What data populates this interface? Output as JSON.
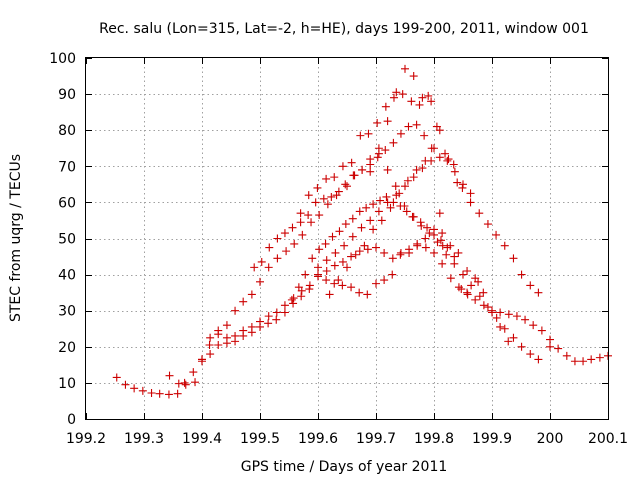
{
  "chart_data": {
    "type": "scatter",
    "title": "Rec. salu (Lon=315, Lat=-2, h=HE), days 199-200, 2011, window 001",
    "xlabel": "GPS time / Days of year 2011",
    "ylabel": "STEC from uqrg / TECUs",
    "xlim": [
      199.2,
      200.1
    ],
    "ylim": [
      0,
      100
    ],
    "xticks": [
      199.2,
      199.3,
      199.4,
      199.5,
      199.6,
      199.7,
      199.8,
      199.9,
      200.0,
      200.1
    ],
    "xtick_labels": [
      "199.2",
      "199.3",
      "199.4",
      "199.5",
      "199.6",
      "199.7",
      "199.8",
      "199.9",
      "200",
      "200.1"
    ],
    "yticks": [
      0,
      10,
      20,
      30,
      40,
      50,
      60,
      70,
      80,
      90,
      100
    ],
    "ytick_labels": [
      "0",
      "10",
      "20",
      "30",
      "40",
      "50",
      "60",
      "70",
      "80",
      "90",
      "100"
    ],
    "grid": true,
    "marker": "+",
    "color": "#cc0000",
    "series": [
      {
        "name": "STEC",
        "x": [
          199.253,
          199.268,
          199.283,
          199.298,
          199.313,
          199.327,
          199.343,
          199.358,
          199.372,
          199.388,
          199.344,
          199.36,
          199.37,
          199.385,
          199.4,
          199.413,
          199.428,
          199.443,
          199.457,
          199.471,
          199.486,
          199.5,
          199.515,
          199.53,
          199.545,
          199.559,
          199.573,
          199.588,
          199.602,
          199.617,
          199.632,
          199.647,
          199.661,
          199.676,
          199.69,
          199.705,
          199.72,
          199.734,
          199.749,
          199.763,
          199.778,
          199.792,
          199.806,
          199.821,
          199.835,
          199.85,
          199.864,
          199.879,
          199.893,
          199.908,
          199.922,
          199.937,
          199.951,
          199.966,
          199.98,
          199.4,
          199.414,
          199.428,
          199.443,
          199.457,
          199.471,
          199.486,
          199.5,
          199.515,
          199.529,
          199.543,
          199.558,
          199.572,
          199.586,
          199.6,
          199.615,
          199.629,
          199.643,
          199.657,
          199.672,
          199.686,
          199.7,
          199.714,
          199.729,
          199.743,
          199.757,
          199.771,
          199.786,
          199.8,
          199.814,
          199.829,
          199.843,
          199.857,
          199.871,
          199.886,
          199.9,
          199.914,
          199.929,
          199.943,
          199.957,
          199.971,
          199.986,
          200.0,
          200.014,
          200.029,
          200.043,
          200.057,
          200.071,
          200.086,
          200.1,
          199.4,
          199.414,
          199.428,
          199.443,
          199.457,
          199.471,
          199.486,
          199.5,
          199.514,
          199.528,
          199.543,
          199.557,
          199.571,
          199.585,
          199.6,
          199.614,
          199.628,
          199.642,
          199.657,
          199.671,
          199.685,
          199.7,
          199.714,
          199.728,
          199.742,
          199.757,
          199.771,
          199.785,
          199.8,
          199.814,
          199.828,
          199.842,
          199.857,
          199.871,
          199.885,
          199.9,
          199.914,
          199.928,
          199.49,
          199.503,
          199.516,
          199.53,
          199.543,
          199.556,
          199.57,
          199.583,
          199.596,
          199.61,
          199.623,
          199.636,
          199.65,
          199.663,
          199.676,
          199.69,
          199.703,
          199.716,
          199.73,
          199.743,
          199.756,
          199.77,
          199.783,
          199.796,
          199.81,
          199.823,
          199.836,
          199.85,
          199.863,
          199.876,
          199.555,
          199.567,
          199.578,
          199.59,
          199.602,
          199.613,
          199.625,
          199.637,
          199.648,
          199.66,
          199.672,
          199.683,
          199.695,
          199.707,
          199.718,
          199.73,
          199.742,
          199.753,
          199.765,
          199.777,
          199.788,
          199.8,
          199.812,
          199.823,
          199.835,
          199.847,
          199.858,
          199.57,
          199.584,
          199.599,
          199.614,
          199.628,
          199.643,
          199.658,
          199.673,
          199.687,
          199.702,
          199.717,
          199.731,
          199.746,
          199.761,
          199.775,
          199.79,
          199.805,
          199.819,
          199.834,
          199.849,
          199.863,
          199.878,
          199.893,
          199.907,
          199.922,
          199.937,
          199.951,
          199.966,
          199.98,
          200.0,
          199.6,
          199.615,
          199.63,
          199.645,
          199.66,
          199.675,
          199.69,
          199.705,
          199.72,
          199.735,
          199.75,
          199.765,
          199.78,
          199.795,
          199.81,
          199.62,
          199.635,
          199.65,
          199.665,
          199.68,
          199.695,
          199.71,
          199.725,
          199.74,
          199.755,
          199.77,
          199.785,
          199.8,
          199.815,
          199.69,
          199.705,
          199.72,
          199.735,
          199.75,
          199.765,
          199.78,
          199.795,
          199.81,
          199.825,
          199.84
        ],
        "y": [
          11.5,
          9.5,
          8.5,
          7.8,
          7.2,
          7.0,
          6.8,
          7.0,
          9.5,
          10.2,
          12.0,
          9.8,
          10.0,
          13.0,
          16.5,
          20.5,
          23.5,
          26.0,
          30.0,
          32.5,
          34.5,
          38.0,
          42.0,
          44.5,
          46.5,
          48.5,
          51.0,
          54.5,
          56.5,
          59.5,
          62.0,
          65.0,
          67.5,
          69.0,
          72.0,
          73.5,
          69.0,
          64.5,
          59.0,
          56.0,
          53.5,
          51.5,
          49.0,
          45.5,
          43.0,
          40.0,
          37.0,
          34.0,
          31.0,
          28.0,
          25.0,
          22.5,
          20.0,
          18.0,
          16.5,
          16.0,
          18.0,
          20.5,
          22.5,
          23.0,
          24.5,
          25.5,
          27.0,
          28.5,
          29.5,
          31.5,
          33.5,
          35.5,
          37.0,
          39.5,
          41.0,
          42.5,
          43.5,
          45.0,
          46.5,
          47.0,
          47.5,
          46.0,
          44.5,
          46.0,
          47.0,
          48.0,
          47.5,
          46.0,
          43.0,
          39.0,
          36.5,
          35.0,
          33.0,
          31.5,
          30.0,
          29.5,
          29.0,
          28.5,
          27.5,
          26.0,
          24.5,
          22.0,
          19.5,
          17.5,
          16.0,
          16.0,
          16.5,
          17.0,
          17.5,
          16.5,
          22.5,
          24.5,
          21.0,
          21.5,
          23.0,
          24.0,
          25.5,
          26.5,
          27.5,
          29.5,
          32.0,
          34.0,
          36.0,
          40.0,
          38.5,
          37.5,
          37.0,
          36.5,
          35.0,
          34.5,
          37.5,
          38.5,
          40.0,
          45.5,
          46.0,
          48.5,
          50.0,
          52.5,
          51.5,
          48.0,
          46.0,
          41.0,
          39.0,
          35.0,
          29.5,
          25.5,
          21.5,
          42.0,
          43.5,
          47.5,
          50.0,
          51.5,
          53.0,
          54.5,
          56.5,
          60.0,
          61.0,
          61.5,
          63.0,
          64.5,
          67.5,
          69.0,
          70.5,
          72.5,
          74.5,
          76.5,
          79.0,
          81.0,
          81.5,
          78.5,
          75.0,
          72.5,
          71.5,
          68.5,
          65.0,
          62.5,
          38.0,
          33.0,
          36.5,
          40.0,
          44.5,
          47.0,
          48.5,
          50.5,
          52.0,
          54.0,
          55.5,
          57.5,
          58.5,
          59.5,
          60.5,
          61.5,
          60.0,
          59.0,
          57.5,
          56.0,
          54.5,
          53.0,
          51.0,
          49.5,
          47.5,
          45.0,
          36.0,
          34.5,
          57.0,
          62.0,
          64.0,
          66.5,
          67.0,
          70.0,
          71.0,
          78.5,
          79.0,
          82.0,
          86.5,
          89.0,
          90.0,
          88.0,
          87.0,
          89.5,
          81.0,
          73.5,
          70.5,
          64.0,
          60.0,
          57.0,
          54.0,
          51.0,
          48.0,
          44.5,
          40.0,
          37.0,
          35.0,
          20.0,
          42.0,
          44.0,
          46.0,
          48.0,
          50.5,
          53.0,
          55.0,
          57.5,
          60.0,
          62.0,
          64.5,
          67.0,
          69.5,
          71.5,
          57.0,
          34.5,
          38.5,
          42.0,
          45.5,
          48.0,
          52.5,
          55.0,
          58.5,
          62.5,
          66.0,
          69.0,
          71.5,
          75.0,
          48.0,
          68.5,
          75.0,
          82.5,
          90.5,
          97.0,
          95.0,
          89.0,
          88.0,
          80.0,
          72.0,
          65.5
        ]
      }
    ]
  }
}
